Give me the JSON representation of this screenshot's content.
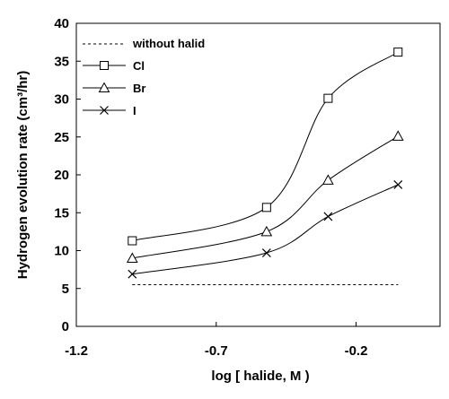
{
  "chart_data": {
    "type": "line",
    "title": "",
    "xlabel": "log [ halide, M )",
    "ylabel": "Hydrogen evolution rate (cm³/hr)",
    "xlim": [
      -1.2,
      0.1
    ],
    "ylim": [
      0,
      40
    ],
    "x_ticks": [
      "-1.2",
      "-0.7",
      "-0.2"
    ],
    "x_tick_values": [
      -1.2,
      -0.7,
      -0.2
    ],
    "y_ticks": [
      "0",
      "5",
      "10",
      "15",
      "20",
      "25",
      "30",
      "35",
      "40"
    ],
    "y_tick_values": [
      0,
      5,
      10,
      15,
      20,
      25,
      30,
      35,
      40
    ],
    "grid": false,
    "legend_position": "top-left",
    "reference_line": {
      "name": "without halid",
      "y": 5.5,
      "x": [
        -1.0,
        -0.05
      ],
      "style": "dashed"
    },
    "series": [
      {
        "name": "Cl",
        "marker": "square",
        "x": [
          -1.0,
          -0.52,
          -0.3,
          -0.05
        ],
        "y": [
          11.3,
          15.7,
          30.1,
          36.2
        ]
      },
      {
        "name": "Br",
        "marker": "triangle",
        "x": [
          -1.0,
          -0.52,
          -0.3,
          -0.05
        ],
        "y": [
          9.0,
          12.5,
          19.3,
          25.1
        ]
      },
      {
        "name": "I",
        "marker": "x",
        "x": [
          -1.0,
          -0.52,
          -0.3,
          -0.05
        ],
        "y": [
          6.9,
          9.7,
          14.5,
          18.7
        ]
      }
    ]
  }
}
